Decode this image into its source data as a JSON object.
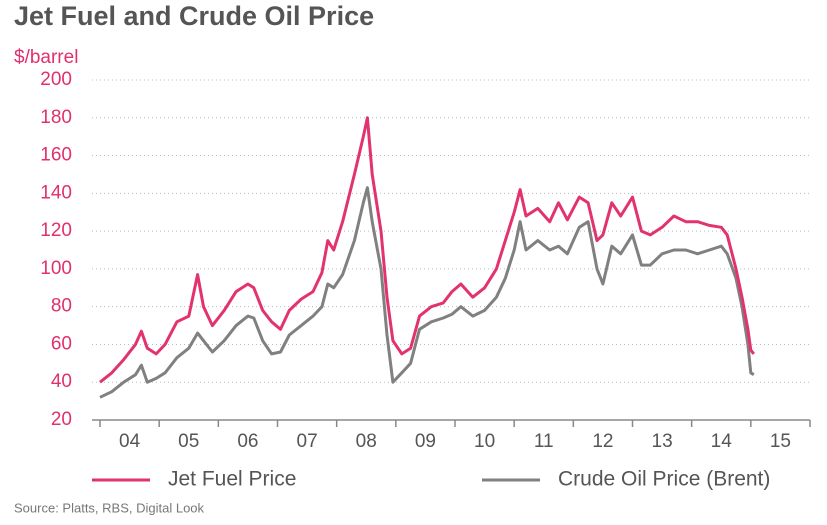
{
  "chart_data": {
    "type": "line",
    "title": "Jet Fuel and Crude Oil Price",
    "y_label": "$/barrel",
    "source": "Source: Platts, RBS, Digital Look",
    "x": [
      4.0,
      4.2,
      4.4,
      4.6,
      4.7,
      4.8,
      4.95,
      5.1,
      5.3,
      5.5,
      5.65,
      5.75,
      5.9,
      6.1,
      6.3,
      6.5,
      6.6,
      6.75,
      6.9,
      7.05,
      7.2,
      7.4,
      7.6,
      7.75,
      7.85,
      7.95,
      8.1,
      8.3,
      8.45,
      8.52,
      8.6,
      8.75,
      8.85,
      8.95,
      9.1,
      9.25,
      9.4,
      9.6,
      9.8,
      9.95,
      10.1,
      10.3,
      10.5,
      10.7,
      10.85,
      11.0,
      11.1,
      11.2,
      11.4,
      11.6,
      11.75,
      11.9,
      12.1,
      12.25,
      12.4,
      12.5,
      12.65,
      12.8,
      13.0,
      13.15,
      13.3,
      13.5,
      13.7,
      13.9,
      14.1,
      14.3,
      14.5,
      14.6,
      14.75,
      14.85,
      14.95,
      15.0,
      15.05
    ],
    "series": [
      {
        "name": "Jet Fuel Price",
        "color": "#e2336f",
        "values": [
          40,
          45,
          52,
          60,
          67,
          58,
          55,
          60,
          72,
          75,
          97,
          80,
          70,
          78,
          88,
          92,
          90,
          78,
          72,
          68,
          78,
          84,
          88,
          98,
          115,
          110,
          125,
          150,
          170,
          180,
          150,
          120,
          85,
          62,
          55,
          58,
          75,
          80,
          82,
          88,
          92,
          85,
          90,
          100,
          115,
          130,
          142,
          128,
          132,
          125,
          135,
          126,
          138,
          135,
          115,
          118,
          135,
          128,
          138,
          120,
          118,
          122,
          128,
          125,
          125,
          123,
          122,
          118,
          100,
          85,
          68,
          57,
          55
        ]
      },
      {
        "name": "Crude Oil Price (Brent)",
        "color": "#808080",
        "values": [
          32,
          35,
          40,
          44,
          49,
          40,
          42,
          45,
          53,
          58,
          66,
          62,
          56,
          62,
          70,
          75,
          74,
          62,
          55,
          56,
          65,
          70,
          75,
          80,
          92,
          90,
          97,
          115,
          135,
          143,
          125,
          100,
          65,
          40,
          45,
          50,
          68,
          72,
          74,
          76,
          80,
          75,
          78,
          85,
          95,
          110,
          125,
          110,
          115,
          110,
          112,
          108,
          122,
          125,
          100,
          92,
          112,
          108,
          118,
          102,
          102,
          108,
          110,
          110,
          108,
          110,
          112,
          108,
          95,
          80,
          60,
          45,
          44
        ]
      }
    ],
    "xlim": [
      4,
      16
    ],
    "xticks": [
      {
        "value": 4.5,
        "label": "04"
      },
      {
        "value": 5.5,
        "label": "05"
      },
      {
        "value": 6.5,
        "label": "06"
      },
      {
        "value": 7.5,
        "label": "07"
      },
      {
        "value": 8.5,
        "label": "08"
      },
      {
        "value": 9.5,
        "label": "09"
      },
      {
        "value": 10.5,
        "label": "10"
      },
      {
        "value": 11.5,
        "label": "11"
      },
      {
        "value": 12.5,
        "label": "12"
      },
      {
        "value": 13.5,
        "label": "13"
      },
      {
        "value": 14.5,
        "label": "14"
      },
      {
        "value": 15.5,
        "label": "15"
      }
    ],
    "xtick_marks": [
      4,
      5,
      6,
      7,
      8,
      9,
      10,
      11,
      12,
      13,
      14,
      15,
      16
    ],
    "ylim": [
      20,
      200
    ],
    "yticks": [
      20,
      40,
      60,
      80,
      100,
      120,
      140,
      160,
      180,
      200
    ],
    "grid": true
  }
}
